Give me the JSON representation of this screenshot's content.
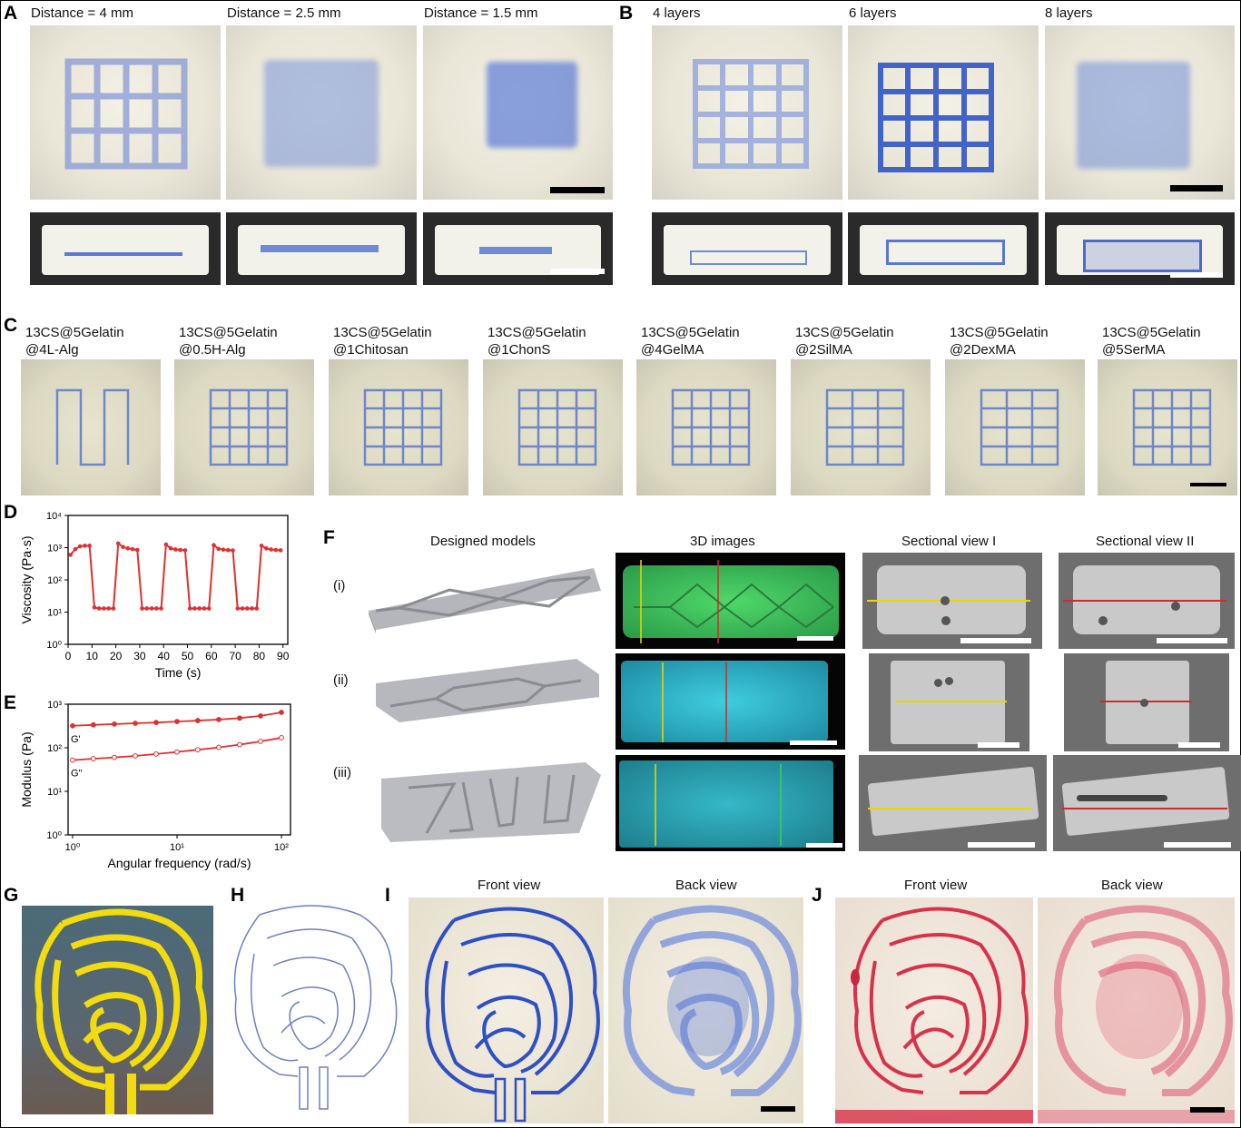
{
  "panel_labels": [
    "A",
    "B",
    "C",
    "D",
    "E",
    "F",
    "G",
    "H",
    "I",
    "J"
  ],
  "panelA": {
    "titles": [
      "Distance = 4 mm",
      "Distance = 2.5 mm",
      "Distance = 1.5 mm"
    ]
  },
  "panelB": {
    "titles": [
      "4 layers",
      "6 layers",
      "8 layers"
    ]
  },
  "panelC": {
    "titles": [
      [
        "13CS@5Gelatin",
        "@4L-Alg"
      ],
      [
        "13CS@5Gelatin",
        "@0.5H-Alg"
      ],
      [
        "13CS@5Gelatin",
        "@1Chitosan"
      ],
      [
        "13CS@5Gelatin",
        "@1ChonS"
      ],
      [
        "13CS@5Gelatin",
        "@4GelMA"
      ],
      [
        "13CS@5Gelatin",
        "@2SilMA"
      ],
      [
        "13CS@5Gelatin",
        "@2DexMA"
      ],
      [
        "13CS@5Gelatin",
        "@5SerMA"
      ]
    ]
  },
  "panelF": {
    "columns": [
      "Designed models",
      "3D images",
      "Sectional view I",
      "Sectional view II"
    ],
    "rows": [
      "(i)",
      "(ii)",
      "(iii)"
    ]
  },
  "panelI": {
    "titles": [
      "Front view",
      "Back view"
    ]
  },
  "panelJ": {
    "titles": [
      "Front view",
      "Back view"
    ]
  },
  "chart_data": [
    {
      "type": "line",
      "panel": "D",
      "xlabel": "Time (s)",
      "ylabel": "Viscosity (Pa·s)",
      "xlim": [
        0,
        92
      ],
      "ylim_log10": [
        0,
        4
      ],
      "yscale": "log",
      "x_ticks": [
        "0",
        "10",
        "20",
        "30",
        "40",
        "50",
        "60",
        "70",
        "80",
        "90"
      ],
      "y_ticks": [
        "10⁰",
        "10¹",
        "10²",
        "10³",
        "10⁴"
      ],
      "color": "#e03030",
      "series": [
        {
          "x": [
            1,
            3,
            5,
            7,
            9,
            11,
            13,
            15,
            17,
            19,
            21,
            23,
            25,
            27,
            29,
            31,
            33,
            35,
            37,
            39,
            41,
            43,
            45,
            47,
            49,
            51,
            53,
            55,
            57,
            59,
            61,
            63,
            65,
            67,
            69,
            71,
            73,
            75,
            77,
            79,
            81,
            83,
            85,
            87,
            89
          ],
          "y": [
            600,
            900,
            1100,
            1150,
            1150,
            14,
            13,
            13,
            13,
            13,
            1350,
            1050,
            950,
            900,
            850,
            13,
            13,
            13,
            13,
            13,
            1250,
            950,
            880,
            850,
            830,
            13,
            13,
            13,
            13,
            13,
            1200,
            920,
            870,
            840,
            820,
            13,
            13,
            13,
            13,
            13,
            1150,
            950,
            880,
            850,
            830
          ]
        }
      ]
    },
    {
      "type": "line",
      "panel": "E",
      "xlabel": "Angular frequency (rad/s)",
      "ylabel": "Modulus (Pa)",
      "xscale": "log",
      "yscale": "log",
      "xlim_log10": [
        0,
        2
      ],
      "ylim_log10": [
        0,
        3
      ],
      "x_ticks": [
        "10⁰",
        "10¹",
        "10²"
      ],
      "y_ticks": [
        "10⁰",
        "10¹",
        "10²",
        "10³"
      ],
      "color": "#e03030",
      "series": [
        {
          "name": "G'",
          "filled": true,
          "x": [
            1,
            1.58,
            2.51,
            3.98,
            6.31,
            10,
            15.8,
            25.1,
            39.8,
            63.1,
            100
          ],
          "y": [
            320,
            335,
            350,
            365,
            380,
            400,
            420,
            445,
            480,
            540,
            650
          ]
        },
        {
          "name": "G''",
          "filled": false,
          "x": [
            1,
            1.58,
            2.51,
            3.98,
            6.31,
            10,
            15.8,
            25.1,
            39.8,
            63.1,
            100
          ],
          "y": [
            52,
            56,
            60,
            65,
            72,
            80,
            90,
            102,
            118,
            140,
            170
          ]
        }
      ]
    }
  ],
  "colors": {
    "blue_dye": "#3f5fc8",
    "red_dye": "#d8324a",
    "yellow_model": "#f2dc10",
    "fluor_green": "#3fc25a",
    "fluor_cyan": "#2fb9c8",
    "guide_yellow": "#e8d800",
    "guide_red": "#d02a2a"
  }
}
